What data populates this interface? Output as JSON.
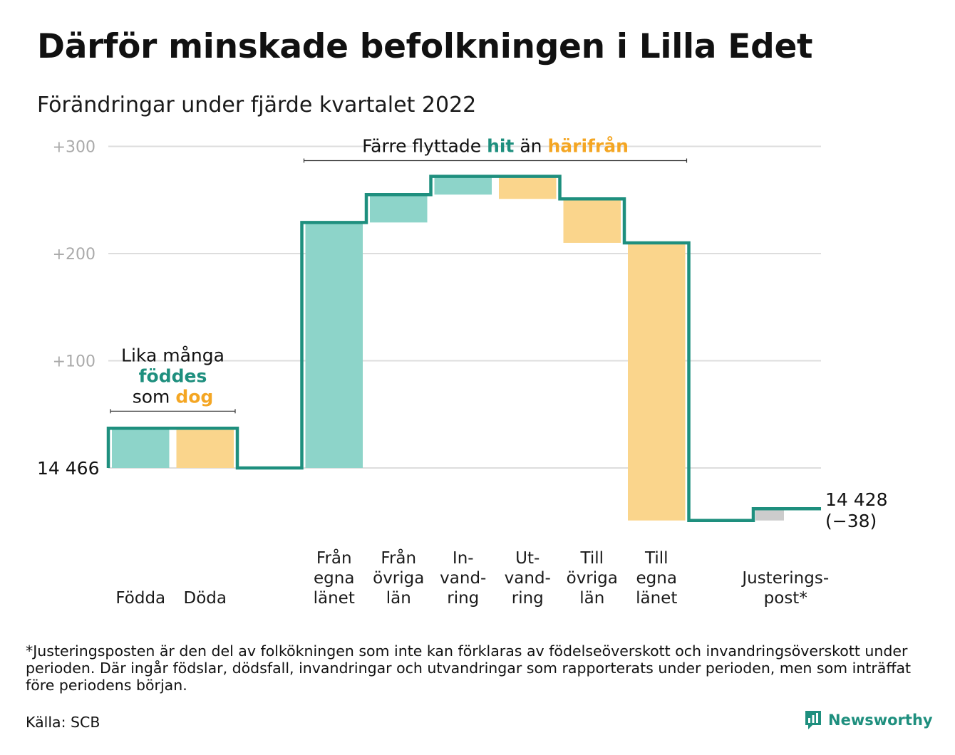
{
  "title": "Därför minskade befolkningen i Lilla Edet",
  "subtitle": "Förändringar under fjärde kvartalet 2022",
  "footnote": "*Justeringsposten är den del av folkökningen som inte kan förklaras av födelseöverskott och invandringsöverskott under perioden. Där ingår födslar, dödsfall, invandringar och utvandringar som rapporterats under perioden, men som inträffat före periodens början.",
  "source": "Källa: SCB",
  "brand": {
    "name": "Newsworthy",
    "icon": "bar-chart-speech-bubble-icon"
  },
  "colors": {
    "line": "#1e8f7e",
    "inflow": "#8dd4c9",
    "outflow": "#fad58c",
    "adjustment": "#cccccc",
    "accent_text": "#f4a623",
    "grid": "#dddddd",
    "axis_label": "#aaaaaa"
  },
  "chart_data": {
    "type": "waterfall",
    "baseline_label": "14 466",
    "start_value": 14466,
    "end_label": "14 428",
    "end_change_label": "(−38)",
    "y_ticks": [
      {
        "value": 100,
        "label": "+100"
      },
      {
        "value": 200,
        "label": "+200"
      },
      {
        "value": 300,
        "label": "+300"
      }
    ],
    "ylim": [
      -55,
      300
    ],
    "steps": [
      {
        "label_lines": [
          "Födda"
        ],
        "change": 37,
        "kind": "inflow"
      },
      {
        "label_lines": [
          "Döda"
        ],
        "change": -37,
        "kind": "outflow"
      },
      {
        "label_lines": [],
        "change": 0,
        "kind": "gap"
      },
      {
        "label_lines": [
          "Från",
          "egna",
          "länet"
        ],
        "change": 229,
        "kind": "inflow"
      },
      {
        "label_lines": [
          "Från",
          "övriga",
          "län"
        ],
        "change": 26,
        "kind": "inflow"
      },
      {
        "label_lines": [
          "In-",
          "vand-",
          "ring"
        ],
        "change": 17,
        "kind": "inflow"
      },
      {
        "label_lines": [
          "Ut-",
          "vand-",
          "ring"
        ],
        "change": -21,
        "kind": "outflow"
      },
      {
        "label_lines": [
          "Till",
          "övriga",
          "län"
        ],
        "change": -41,
        "kind": "outflow"
      },
      {
        "label_lines": [
          "Till",
          "egna",
          "länet"
        ],
        "change": -259,
        "kind": "outflow"
      },
      {
        "label_lines": [],
        "change": 0,
        "kind": "gap"
      },
      {
        "label_lines": [
          "Justerings-",
          "post*"
        ],
        "change": 11,
        "kind": "adjustment"
      }
    ],
    "annotations": [
      {
        "lines": [
          [
            {
              "text": "Lika många",
              "style": "plain"
            }
          ],
          [
            {
              "text": "föddes",
              "style": "inflow"
            }
          ],
          [
            {
              "text": "som ",
              "style": "plain"
            },
            {
              "text": "dog",
              "style": "outflow"
            }
          ]
        ],
        "from_step": 0,
        "to_step": 1
      },
      {
        "lines": [
          [
            {
              "text": "Färre flyttade ",
              "style": "plain"
            },
            {
              "text": "hit",
              "style": "inflow"
            },
            {
              "text": " än ",
              "style": "plain"
            },
            {
              "text": "härifrån",
              "style": "outflow"
            }
          ]
        ],
        "from_step": 3,
        "to_step": 8
      }
    ]
  }
}
